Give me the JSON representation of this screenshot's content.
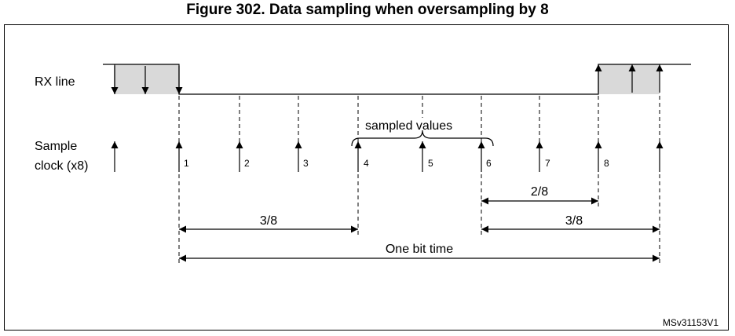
{
  "title": "Figure 302. Data sampling when oversampling by 8",
  "labels": {
    "rx_line": "RX line",
    "sample_clock_line1": "Sample",
    "sample_clock_line2": "clock (x8)",
    "sampled_values": "sampled values",
    "one_bit_time": "One bit time",
    "watermark": "MSv31153V1"
  },
  "clock_numbers": [
    "1",
    "2",
    "3",
    "4",
    "5",
    "6",
    "7",
    "8"
  ],
  "intervals": {
    "start_to_4": "3/8",
    "6_to_8": "2/8",
    "6_to_end": "3/8"
  },
  "colors": {
    "shade": "#d9d9d9",
    "line": "#000000"
  }
}
